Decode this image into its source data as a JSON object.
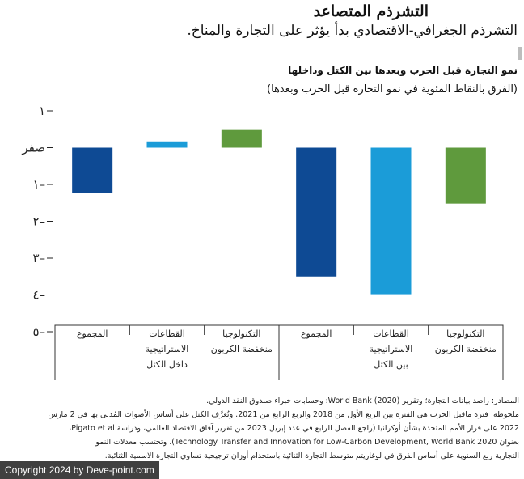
{
  "header": {
    "title": "التشرذم المتصاعد",
    "subtitle": "التشرذم الجغرافي-الاقتصادي بدأ يؤثر على التجارة والمناخ."
  },
  "chart_data": {
    "type": "bar",
    "title": "نمو التجارة قبل الحرب وبعدها بين الكتل وداخلها",
    "subtitle": "(الفرق بالنقاط المئوية في نمو التجارة قبل الحرب وبعدها)",
    "ylim": [
      -5,
      1
    ],
    "yticks": [
      {
        "value": 1,
        "label": "١"
      },
      {
        "value": 0,
        "label": "صفر"
      },
      {
        "value": -1,
        "label": "١–"
      },
      {
        "value": -2,
        "label": "٢–"
      },
      {
        "value": -3,
        "label": "٣–"
      },
      {
        "value": -4,
        "label": "٤–"
      },
      {
        "value": -5,
        "label": "٥–"
      }
    ],
    "categories": [
      [
        "المجموع"
      ],
      [
        "القطاعات",
        "الاستراتيجية",
        "داخل الكتل"
      ],
      [
        "التكنولوجيا",
        "منخفضة الكربون"
      ],
      [
        "المجموع"
      ],
      [
        "القطاعات",
        "الاستراتيجية",
        "بين الكتل"
      ],
      [
        "التكنولوجيا",
        "منخفضة الكربون"
      ]
    ],
    "values": [
      -1.22,
      0.17,
      0.48,
      -3.5,
      -3.98,
      -1.52
    ],
    "colors": [
      "#0e4a94",
      "#1b9cd8",
      "#5f9a3d",
      "#0e4a94",
      "#1b9cd8",
      "#5f9a3d"
    ]
  },
  "notes": [
    "المصادر: راصد بيانات التجارة؛ وتقرير (World Bank (2020؛ وحسابات خبراء صندوق النقد الدولي.",
    "ملحوظة: فترة ماقبل الحرب هي الفترة بين الربع الأول من 2018 والربع الرابع من 2021. وتُعرَّف الكتل على أساس الأصوات المُدلى بها في 2 مارس",
    "2022 على قرار الأمم المتحدة بشأن أوكرانيا (راجع الفصل الرابع في عدد إبريل 2023 من تقرير آفاق الاقتصاد العالمي، ودراسة Pigato et al،",
    "بعنوان Technology Transfer and Innovation for Low-Carbon Development, World Bank 2020). وتحتسب معدلات النمو",
    "التجارية ربع السنوية على أساس الفرق في لوغاريتم متوسط التجارة الثنائية باستخدام أوزان ترجيحية تساوي التجارة الاسمية الثنائية."
  ],
  "copyright": "Copyright 2024 by Deve-point.com"
}
